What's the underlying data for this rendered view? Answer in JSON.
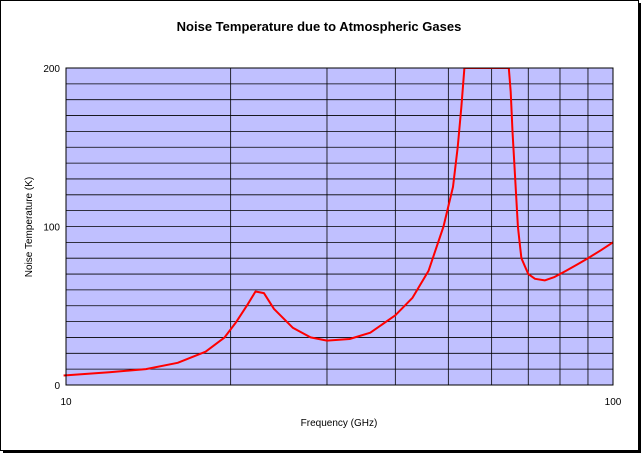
{
  "chart_data": {
    "type": "line",
    "title": "Noise Temperature due to Atmospheric Gases",
    "xlabel": "Frequency (GHz)",
    "ylabel": "Noise Temperature (K)",
    "x_scale": "log",
    "xlim": [
      10,
      100
    ],
    "ylim": [
      0,
      200
    ],
    "x_tick_labels": [
      "10",
      "100"
    ],
    "y_tick_labels": [
      "0",
      "100",
      "200"
    ],
    "grid": true,
    "colors": {
      "plot_background": "#c0c0ff",
      "line": "#ff0000",
      "grid": "#000000"
    },
    "series": [
      {
        "x": [
          9.9,
          12,
          14,
          16,
          18,
          19.5,
          20.5,
          21.5,
          22.2,
          23,
          24,
          26,
          28,
          30,
          33,
          36,
          40,
          43,
          46,
          49,
          51,
          52,
          52.8,
          53.5,
          64.5,
          65,
          65.5,
          66,
          66.5,
          67,
          67.5,
          68,
          70,
          72,
          75,
          78,
          82,
          86,
          90,
          95,
          100
        ],
        "values": [
          6,
          8,
          10,
          14,
          21,
          30,
          40,
          51,
          59,
          58,
          48,
          36,
          30,
          28,
          29,
          33,
          44,
          55,
          72,
          100,
          125,
          150,
          175,
          200,
          200,
          185,
          160,
          140,
          120,
          100,
          90,
          80,
          70,
          67,
          66,
          68,
          72,
          76,
          80,
          85,
          90
        ]
      }
    ]
  }
}
